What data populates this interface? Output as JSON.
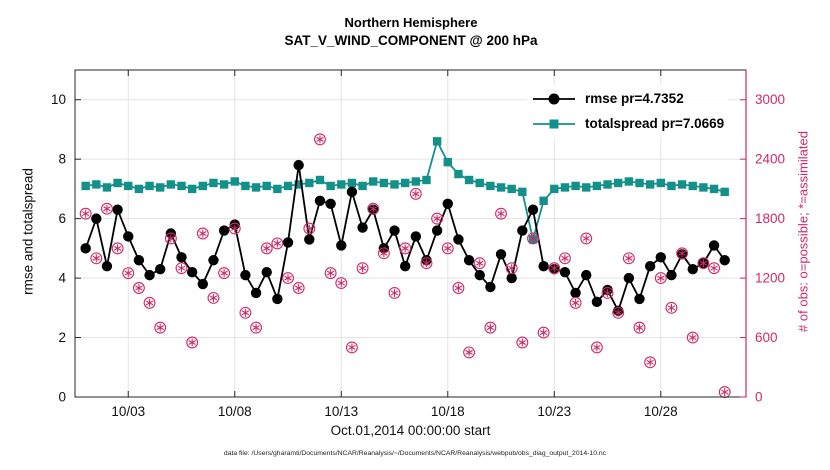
{
  "title": {
    "line1": "Northern Hemisphere",
    "line2": "SAT_V_WIND_COMPONENT @ 200 hPa"
  },
  "legend": {
    "items": [
      {
        "id": "rmse",
        "label": "rmse pr=4.7352"
      },
      {
        "id": "totalspread",
        "label": "totalspread pr=7.0669"
      }
    ]
  },
  "colors": {
    "rmse": "#000000",
    "totalspread": "#14908a",
    "obs": "#cf2a68",
    "grid": "#e3e3e3",
    "axis": "#262626"
  },
  "caption": "data file: /Users/gharamti/Documents/NCAR/Reanalysis/~/Documents/NCAR/Reanalysis/webpub/obs_diag_output_2014-10.nc",
  "chart_data": {
    "type": "line",
    "title": "Northern Hemisphere — SAT_V_WIND_COMPONENT @ 200 hPa",
    "xlabel": "Oct.01,2014 00:00:00 start",
    "ylabel_left": "rmse and totalspread",
    "ylabel_right": "# of obs: o=possible; *=assimilated",
    "xlim": [
      0.5,
      32
    ],
    "ylim_left": [
      0,
      11
    ],
    "ylim_right": [
      0,
      3300
    ],
    "grid": true,
    "legend_position": "top-right-inside",
    "x_ticks": [
      {
        "v": 3,
        "label": "10/03"
      },
      {
        "v": 8,
        "label": "10/08"
      },
      {
        "v": 13,
        "label": "10/13"
      },
      {
        "v": 18,
        "label": "10/18"
      },
      {
        "v": 23,
        "label": "10/23"
      },
      {
        "v": 28,
        "label": "10/28"
      }
    ],
    "y_ticks_left": [
      {
        "v": 0,
        "label": "0"
      },
      {
        "v": 2,
        "label": "2"
      },
      {
        "v": 4,
        "label": "4"
      },
      {
        "v": 6,
        "label": "6"
      },
      {
        "v": 8,
        "label": "8"
      },
      {
        "v": 10,
        "label": "10"
      }
    ],
    "y_ticks_right": [
      {
        "v": 0,
        "label": "0"
      },
      {
        "v": 600,
        "label": "600"
      },
      {
        "v": 1200,
        "label": "1200"
      },
      {
        "v": 1800,
        "label": "1800"
      },
      {
        "v": 2400,
        "label": "2400"
      },
      {
        "v": 3000,
        "label": "3000"
      }
    ],
    "x": [
      1,
      1.5,
      2,
      2.5,
      3,
      3.5,
      4,
      4.5,
      5,
      5.5,
      6,
      6.5,
      7,
      7.5,
      8,
      8.5,
      9,
      9.5,
      10,
      10.5,
      11,
      11.5,
      12,
      12.5,
      13,
      13.5,
      14,
      14.5,
      15,
      15.5,
      16,
      16.5,
      17,
      17.5,
      18,
      18.5,
      19,
      19.5,
      20,
      20.5,
      21,
      21.5,
      22,
      22.5,
      23,
      23.5,
      24,
      24.5,
      25,
      25.5,
      26,
      26.5,
      27,
      27.5,
      28,
      28.5,
      29,
      29.5,
      30,
      30.5,
      31
    ],
    "series": [
      {
        "name": "rmse",
        "axis": "left",
        "marker": "circle",
        "line": true,
        "values": [
          5.0,
          6.0,
          4.4,
          6.3,
          5.4,
          4.6,
          4.1,
          4.3,
          5.5,
          4.7,
          4.2,
          3.8,
          4.6,
          5.6,
          5.8,
          4.1,
          3.5,
          4.2,
          3.3,
          5.2,
          7.8,
          5.3,
          6.6,
          6.5,
          5.1,
          6.9,
          5.7,
          6.3,
          5.0,
          5.6,
          4.4,
          5.4,
          4.6,
          5.6,
          6.5,
          5.3,
          4.6,
          4.1,
          3.7,
          4.8,
          4.0,
          5.6,
          6.3,
          4.4,
          4.3,
          4.2,
          3.5,
          4.1,
          3.2,
          3.6,
          2.9,
          4.0,
          3.3,
          4.4,
          4.7,
          4.1,
          4.8,
          4.3,
          4.5,
          5.1,
          4.6
        ]
      },
      {
        "name": "totalspread",
        "axis": "left",
        "marker": "square",
        "line": true,
        "values": [
          7.1,
          7.15,
          7.05,
          7.2,
          7.1,
          7.0,
          7.1,
          7.05,
          7.15,
          7.1,
          7.0,
          7.1,
          7.2,
          7.15,
          7.25,
          7.1,
          7.05,
          7.1,
          7.0,
          7.1,
          7.15,
          7.2,
          7.3,
          7.1,
          7.15,
          7.2,
          7.1,
          7.25,
          7.2,
          7.15,
          7.2,
          7.25,
          7.3,
          8.6,
          7.9,
          7.5,
          7.3,
          7.2,
          7.1,
          7.05,
          7.0,
          6.9,
          5.3,
          6.6,
          7.0,
          7.05,
          7.1,
          7.05,
          7.1,
          7.15,
          7.2,
          7.25,
          7.2,
          7.15,
          7.2,
          7.1,
          7.15,
          7.1,
          7.05,
          7.0,
          6.9
        ]
      },
      {
        "name": "obs_possible_and_assimilated",
        "axis": "right",
        "marker": "circled-asterisk",
        "line": false,
        "values": [
          1850,
          1400,
          1900,
          1500,
          1250,
          1100,
          950,
          700,
          1600,
          1300,
          550,
          1650,
          1000,
          1250,
          1700,
          850,
          700,
          1500,
          1550,
          1200,
          1100,
          1700,
          2600,
          1250,
          1150,
          500,
          1300,
          1900,
          1450,
          1050,
          1500,
          2050,
          1350,
          1800,
          1500,
          1100,
          450,
          1350,
          700,
          1850,
          1300,
          550,
          1600,
          650,
          1300,
          1400,
          950,
          1600,
          500,
          1050,
          850,
          1400,
          700,
          350,
          1200,
          900,
          1450,
          600,
          1350,
          1300,
          50
        ]
      }
    ]
  }
}
